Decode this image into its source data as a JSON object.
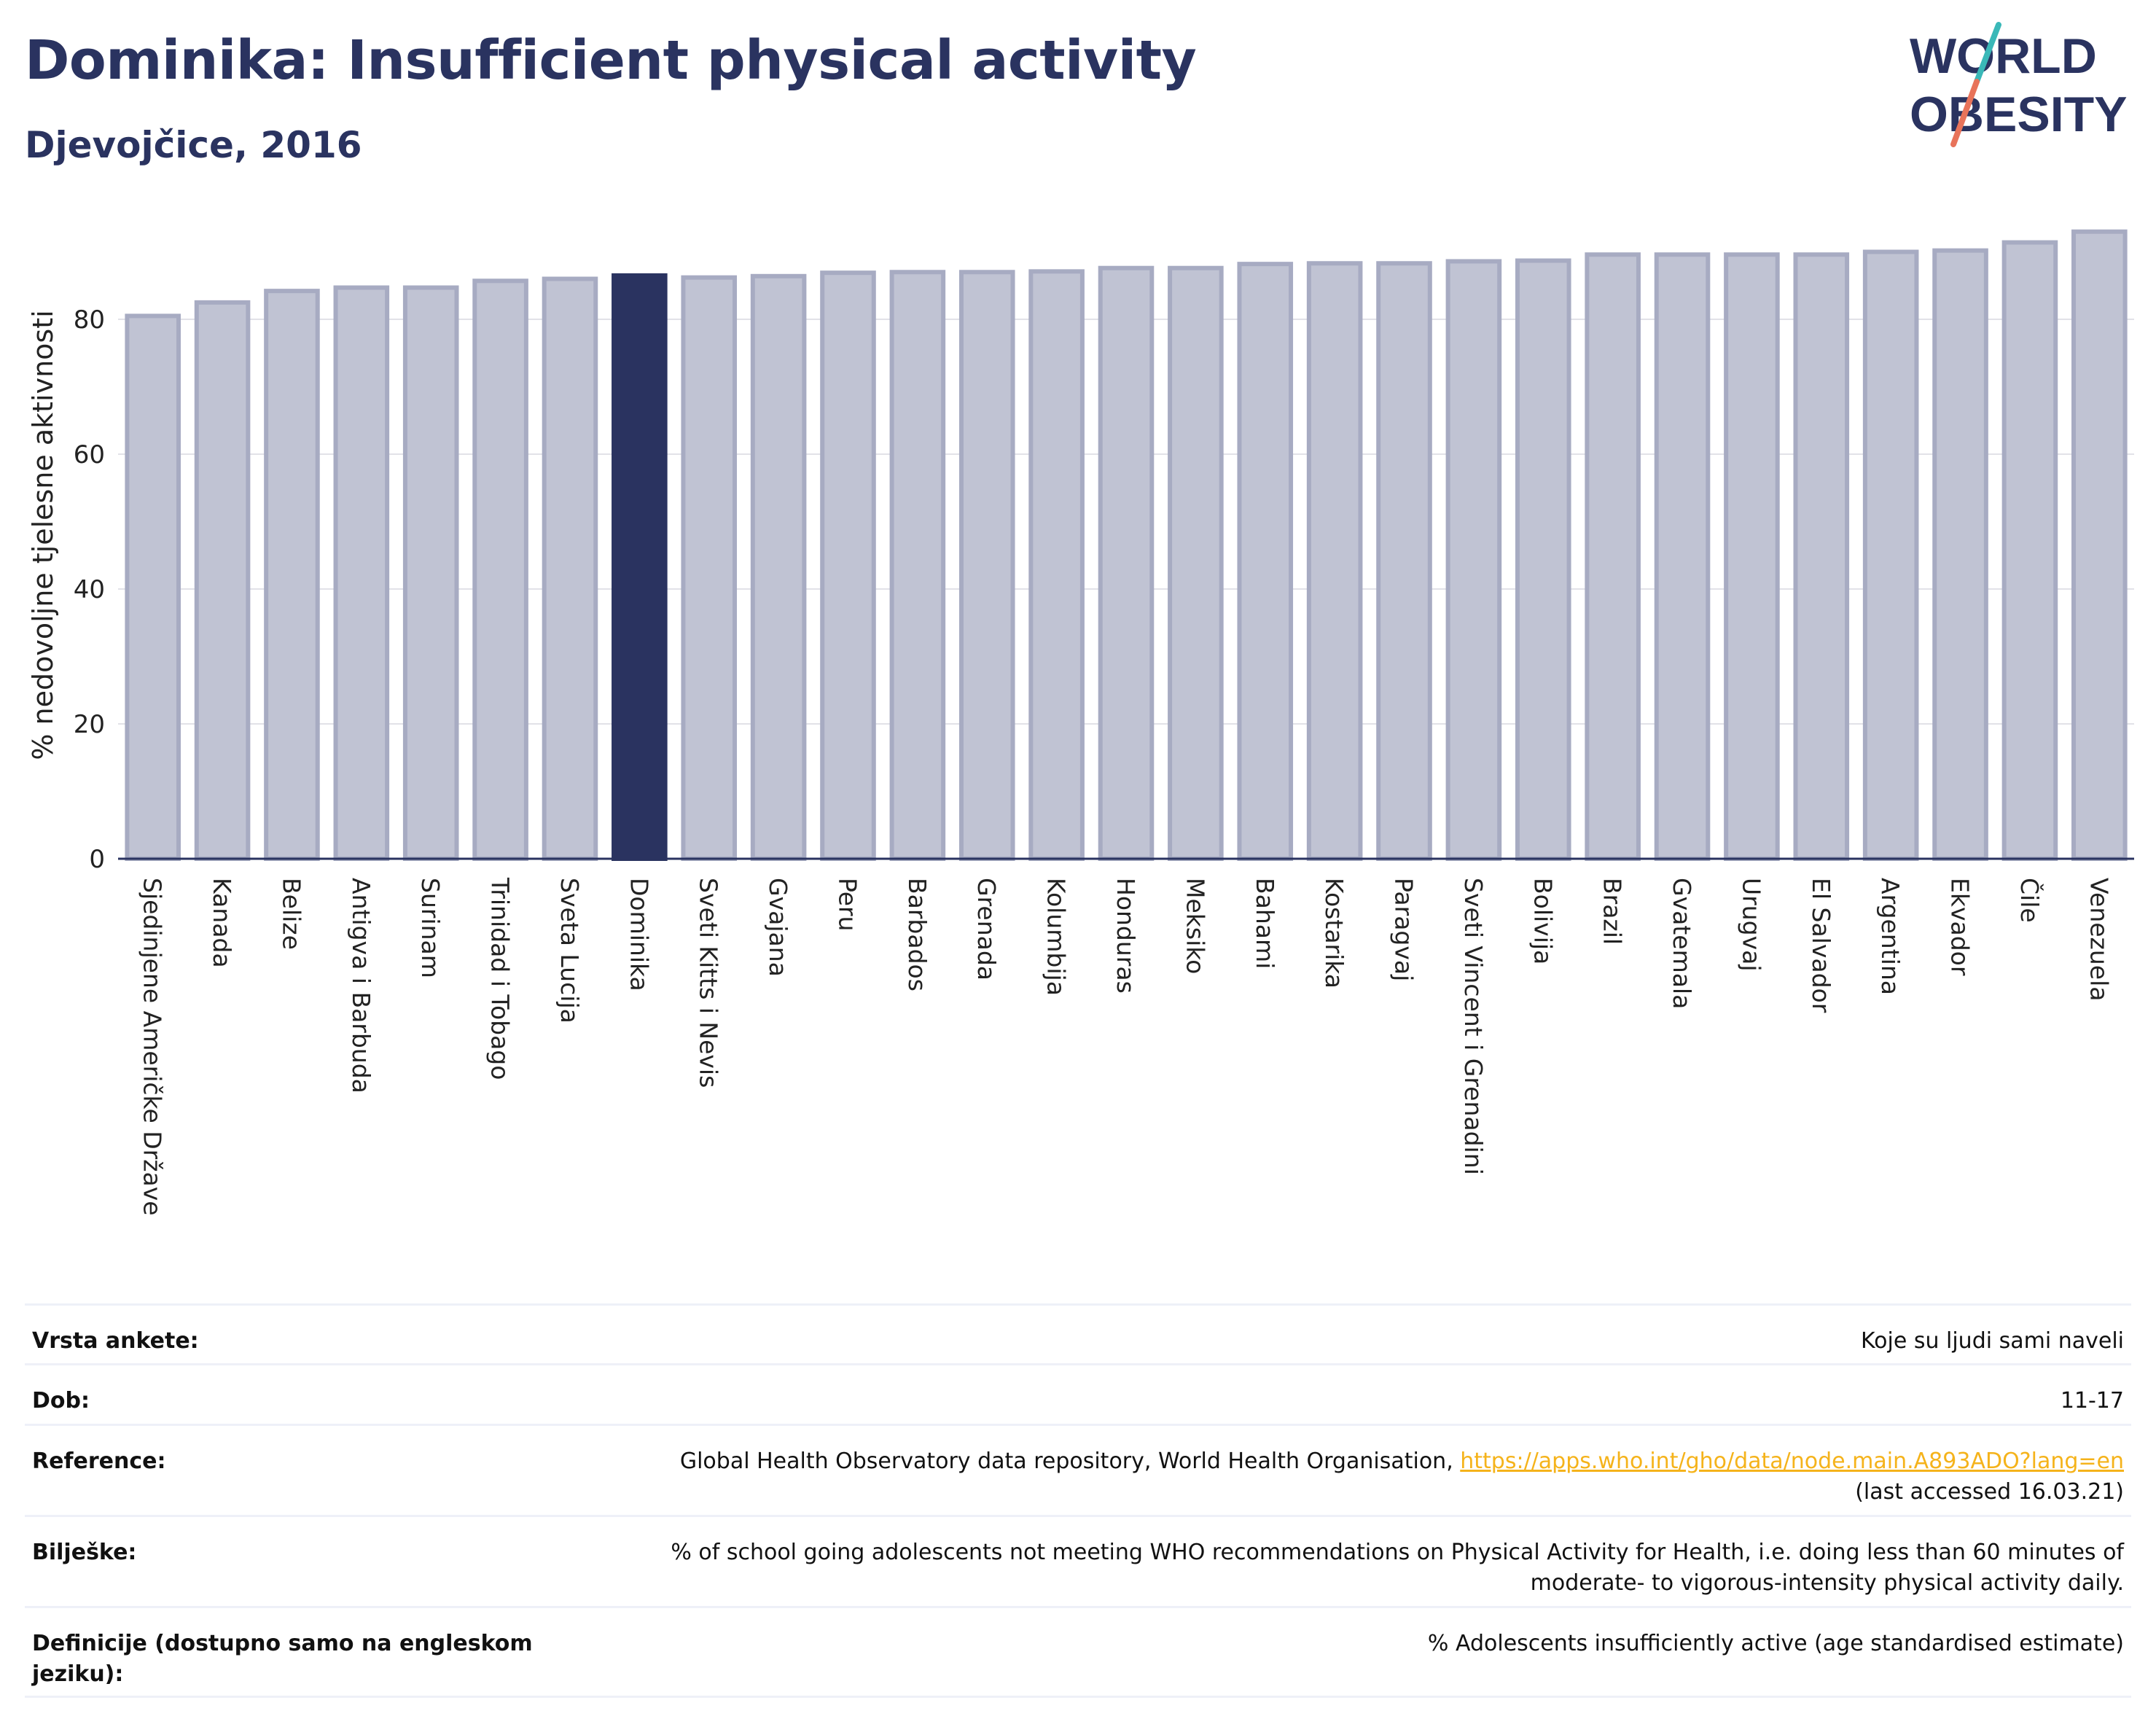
{
  "header": {
    "title": "Dominika: Insufficient physical activity",
    "subtitle": "Djevojčice, 2016"
  },
  "logo": {
    "line1": "WORLD",
    "line2": "OBESITY",
    "colors": {
      "text": "#2a3360",
      "slash_top": "#3ab8b8",
      "slash_bottom": "#e8735a"
    }
  },
  "chart_data": {
    "type": "bar",
    "ylabel": "% nedovoljne tjelesne aktivnosti",
    "ylim": [
      0,
      96
    ],
    "yticks": [
      0,
      20,
      40,
      60,
      80
    ],
    "grid": true,
    "highlight": "Dominika",
    "colors": {
      "bar": "#c0c3d3",
      "bar_border": "#a7abc2",
      "highlight": "#2a3360",
      "axis": "#2a3360",
      "grid": "#e2e2e8"
    },
    "categories": [
      "Sjedinjene Američke Države",
      "Kanada",
      "Belize",
      "Antigva i Barbuda",
      "Surinam",
      "Trinidad i Tobago",
      "Sveta Lucija",
      "Dominika",
      "Sveti Kitts i Nevis",
      "Gvajana",
      "Peru",
      "Barbados",
      "Grenada",
      "Kolumbija",
      "Honduras",
      "Meksiko",
      "Bahami",
      "Kostarika",
      "Paragvaj",
      "Sveti Vincent i Grenadini",
      "Bolivija",
      "Brazil",
      "Gvatemala",
      "Urugvaj",
      "El Salvador",
      "Argentina",
      "Ekvador",
      "Čile",
      "Venezuela"
    ],
    "values": [
      80.5,
      82.5,
      84.2,
      84.7,
      84.7,
      85.7,
      86.0,
      86.5,
      86.2,
      86.4,
      86.9,
      87.0,
      87.0,
      87.1,
      87.6,
      87.6,
      88.2,
      88.3,
      88.3,
      88.6,
      88.7,
      89.6,
      89.6,
      89.6,
      89.6,
      90.0,
      90.2,
      91.4,
      93.0
    ]
  },
  "info": {
    "rows": [
      {
        "label": "Vrsta ankete:",
        "value": "Koje su ljudi sami naveli"
      },
      {
        "label": "Dob:",
        "value": "11-17"
      },
      {
        "label": "Reference:",
        "value": "Global Health Observatory data repository, World Health Organisation, ",
        "link": "https://apps.who.int/gho/data/node.main.A893ADO?lang=en",
        "value2": "(last accessed 16.03.21)"
      },
      {
        "label": "Bilješke:",
        "value": "% of school going adolescents not meeting WHO recommendations on Physical Activity for Health, i.e. doing less than 60 minutes of",
        "value2": "moderate- to vigorous-intensity physical activity daily."
      },
      {
        "label": "Definicije (dostupno samo na engleskom jeziku):",
        "value": "% Adolescents insufficiently active (age standardised estimate)"
      }
    ]
  }
}
